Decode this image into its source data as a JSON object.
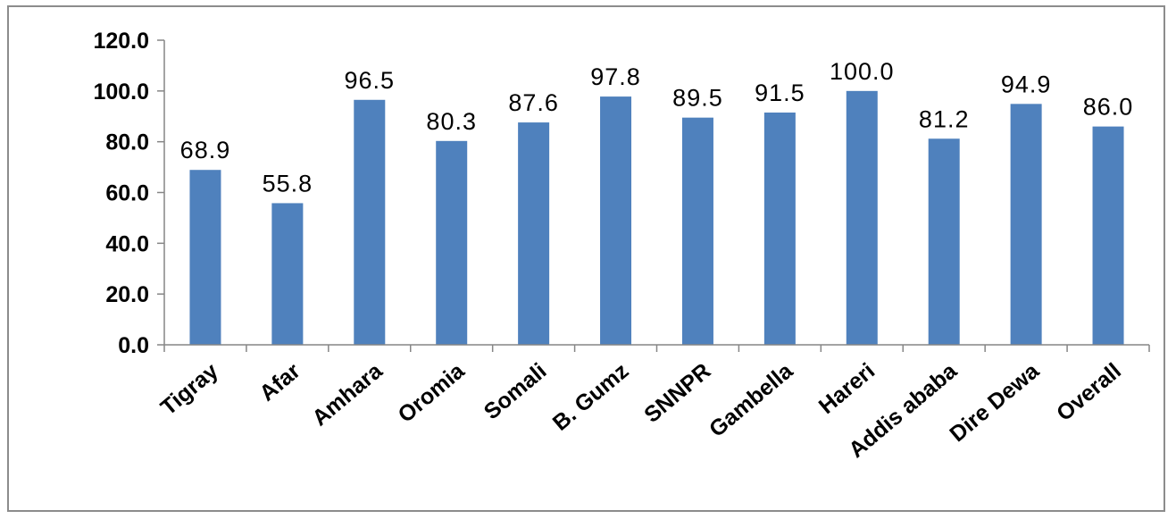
{
  "chart_data": {
    "type": "bar",
    "categories": [
      "Tigray",
      "Afar",
      "Amhara",
      "Oromia",
      "Somali",
      "B. Gumz",
      "SNNPR",
      "Gambella",
      "Hareri",
      "Addis ababa",
      "Dire Dewa",
      "Overall"
    ],
    "values": [
      68.9,
      55.8,
      96.5,
      80.3,
      87.6,
      97.8,
      89.5,
      91.5,
      100.0,
      81.2,
      94.9,
      86.0
    ],
    "data_labels": [
      "68.9",
      "55.8",
      "96.5",
      "80.3",
      "87.6",
      "97.8",
      "89.5",
      "91.5",
      "100.0",
      "81.2",
      "94.9",
      "86.0"
    ],
    "y_ticks": [
      "0.0",
      "20.0",
      "40.0",
      "60.0",
      "80.0",
      "100.0",
      "120.0"
    ],
    "ylim": [
      0,
      120
    ],
    "grid": false,
    "legend": "none",
    "bar_color": "#4f81bd",
    "axis_color": "#868686"
  }
}
